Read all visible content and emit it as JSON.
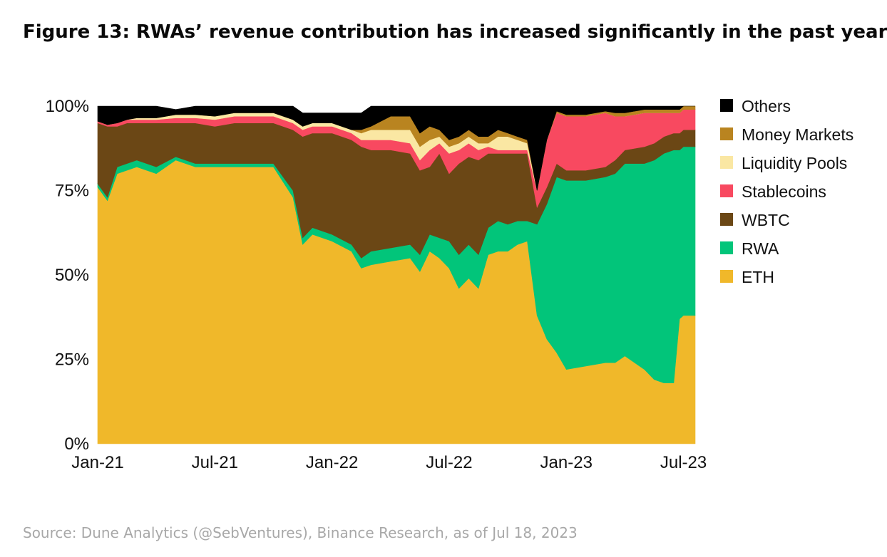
{
  "title": "Figure 13: RWAs’ revenue contribution has increased significantly in the past year",
  "source": "Source: Dune Analytics (@SebVentures), Binance Research, as of Jul 18, 2023",
  "chart_data": {
    "type": "area",
    "stacked": true,
    "normalized": true,
    "ylim": [
      0,
      100
    ],
    "yticks": [
      "0%",
      "25%",
      "50%",
      "75%",
      "100%"
    ],
    "ytick_values": [
      0,
      25,
      50,
      75,
      100
    ],
    "xticks": [
      "Jan-21",
      "Jul-21",
      "Jan-22",
      "Jul-22",
      "Jan-23",
      "Jul-23"
    ],
    "xtick_values": [
      0,
      6,
      12,
      18,
      24,
      30
    ],
    "x": [
      0,
      0.5,
      1,
      1.5,
      2,
      3,
      4,
      5,
      6,
      7,
      8,
      9,
      10,
      10.5,
      11,
      12,
      13,
      13.5,
      14,
      15,
      16,
      16.5,
      17,
      17.5,
      18,
      18.5,
      19,
      19.5,
      20,
      20.5,
      21,
      21.5,
      22,
      22.5,
      23,
      23.5,
      24,
      25,
      26,
      26.5,
      27,
      28,
      28.5,
      29,
      29.5,
      29.8,
      30,
      30.6
    ],
    "legend_position": "right",
    "series": [
      {
        "name": "ETH",
        "color": "#F0B82A",
        "values": [
          76,
          72,
          80,
          81,
          82,
          80,
          84,
          82,
          82,
          82,
          82,
          82,
          73,
          59,
          62,
          60,
          57,
          52,
          53,
          54,
          55,
          51,
          57,
          55,
          52,
          46,
          49,
          46,
          56,
          57,
          57,
          59,
          60,
          38,
          31,
          27,
          22,
          23,
          24,
          24,
          26,
          22,
          19,
          18,
          18,
          37,
          38,
          38
        ]
      },
      {
        "name": "RWA",
        "color": "#02C57A",
        "values": [
          1,
          1,
          2,
          2,
          2,
          2,
          1,
          1,
          1,
          1,
          1,
          1,
          2,
          2,
          2,
          2,
          2,
          3,
          4,
          4,
          4,
          5,
          5,
          6,
          8,
          10,
          10,
          10,
          8,
          9,
          8,
          7,
          6,
          27,
          40,
          52,
          56,
          55,
          55,
          56,
          57,
          61,
          65,
          68,
          69,
          50,
          50,
          50
        ]
      },
      {
        "name": "WBTC",
        "color": "#6B4715",
        "values": [
          18,
          21,
          12,
          12,
          11,
          13,
          10,
          12,
          11,
          12,
          12,
          12,
          18,
          30,
          28,
          30,
          31,
          33,
          30,
          29,
          27,
          25,
          20,
          25,
          20,
          27,
          26,
          28,
          22,
          20,
          21,
          20,
          20,
          5,
          5,
          4,
          3,
          3,
          3,
          4,
          4,
          5,
          5,
          5,
          5,
          5,
          5,
          5
        ]
      },
      {
        "name": "Stablecoins",
        "color": "#F84960",
        "values": [
          0.5,
          0.5,
          1,
          1,
          1,
          1,
          1.5,
          1.5,
          2,
          2,
          2,
          2,
          2,
          2,
          2,
          2,
          2,
          2,
          3,
          3,
          3,
          3,
          5,
          3,
          6,
          4,
          4,
          3,
          2,
          1,
          1,
          1,
          1,
          5,
          14,
          15,
          16,
          16,
          16,
          13,
          10,
          10,
          9,
          7,
          6,
          6,
          6,
          6
        ]
      },
      {
        "name": "Liquidity Pools",
        "color": "#FAE7A3",
        "values": [
          0,
          0,
          0,
          0,
          0.5,
          0.5,
          1,
          1,
          1,
          1,
          1,
          1,
          1,
          1,
          1,
          1,
          1,
          2,
          3,
          3,
          4,
          4,
          3,
          2,
          2,
          2,
          2,
          2,
          1,
          4,
          4,
          3,
          2,
          0,
          0,
          0,
          0,
          0,
          0,
          0,
          0,
          0,
          0,
          0,
          0,
          0,
          0,
          0
        ]
      },
      {
        "name": "Money Markets",
        "color": "#B98420",
        "values": [
          0,
          0,
          0,
          0,
          0,
          0,
          0,
          0,
          0,
          0,
          0,
          0,
          0,
          0,
          0,
          0,
          0,
          1,
          1,
          4,
          4,
          4,
          4,
          2,
          2,
          2,
          2,
          2,
          2,
          2,
          1,
          1,
          1,
          0,
          0,
          0.5,
          0.5,
          0.5,
          0.5,
          1,
          1,
          1,
          1,
          1,
          1,
          1,
          1,
          1
        ]
      },
      {
        "name": "Others",
        "color": "#000000",
        "values": [
          4.5,
          5.5,
          5,
          4,
          3.5,
          3.5,
          1.5,
          2.5,
          3,
          2,
          2,
          2,
          4,
          4,
          3,
          3,
          5,
          5,
          6,
          3,
          3,
          8.5,
          6,
          7,
          10,
          9,
          7,
          9,
          9,
          7,
          8,
          9,
          10,
          25,
          10,
          1.5,
          2.5,
          2.5,
          1.5,
          2,
          2,
          1,
          1,
          1,
          1,
          1,
          0,
          0
        ]
      }
    ],
    "legend_order": [
      "Others",
      "Money Markets",
      "Liquidity Pools",
      "Stablecoins",
      "WBTC",
      "RWA",
      "ETH"
    ]
  }
}
